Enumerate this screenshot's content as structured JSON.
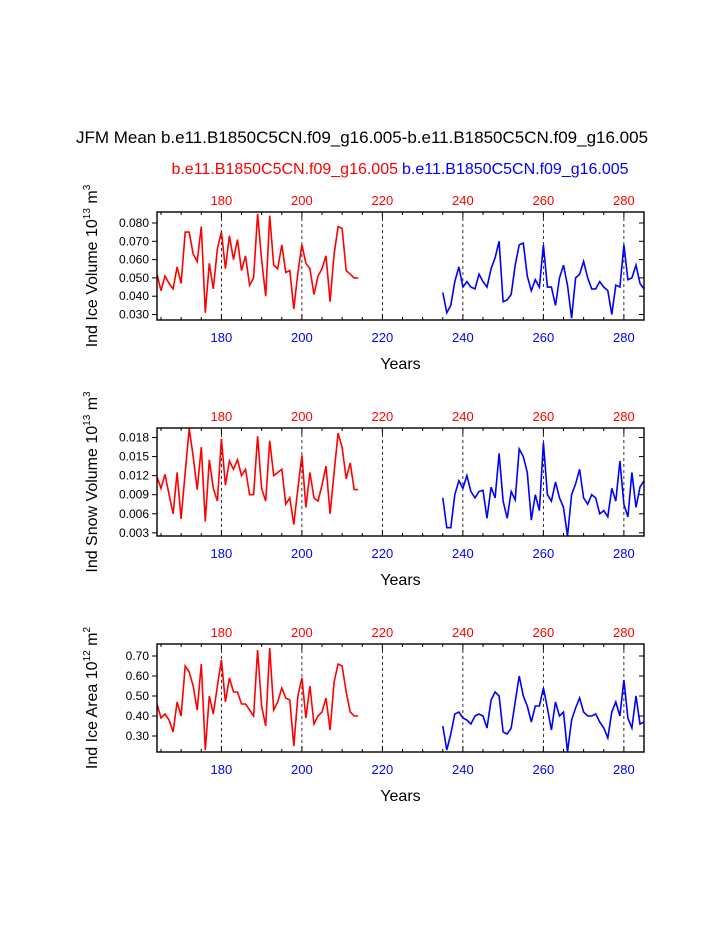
{
  "title": "JFM Mean b.e11.B1850C5CN.f09_g16.005-b.e11.B1850C5CN.f09_g16.005",
  "legend": [
    {
      "name": "b.e11.B1850C5CN.f09_g16.005",
      "color": "#ff0000"
    },
    {
      "name": "b.e11.B1850C5CN.f09_g16.005",
      "color": "#0000ff"
    }
  ],
  "colors": {
    "series_a": "#ff0000",
    "series_b": "#0000ff",
    "reference_line": "#000000"
  },
  "chart_data": [
    {
      "type": "line",
      "ylabel": "Ind Ice Volume 10",
      "ylabel_exp": "13",
      "ylabel_unit": " m",
      "ylabel_unit_exp": "3",
      "xlabel": "Years",
      "xlim": [
        164,
        285
      ],
      "ylim": [
        0.027,
        0.086
      ],
      "yticks": [
        "0.030",
        "0.040",
        "0.050",
        "0.060",
        "0.070",
        "0.080"
      ],
      "xticks": [
        "180",
        "200",
        "220",
        "240",
        "260",
        "280"
      ],
      "reference_lines": [
        180,
        200,
        220,
        240,
        260,
        280
      ],
      "grid": false,
      "series": [
        {
          "color": "#ff0000",
          "x": [
            164,
            165,
            166,
            167,
            168,
            169,
            170,
            171,
            172,
            173,
            174,
            175,
            176,
            177,
            178,
            179,
            180,
            181,
            182,
            183,
            184,
            185,
            186,
            187,
            188,
            189,
            190,
            191,
            192,
            193,
            194,
            195,
            196,
            197,
            198,
            199,
            200,
            201,
            202,
            203,
            204,
            205,
            206,
            207,
            208,
            209,
            210,
            211,
            212,
            213,
            214
          ],
          "values": [
            0.052,
            0.043,
            0.051,
            0.047,
            0.044,
            0.056,
            0.047,
            0.075,
            0.075,
            0.063,
            0.059,
            0.078,
            0.031,
            0.058,
            0.044,
            0.066,
            0.075,
            0.055,
            0.073,
            0.06,
            0.071,
            0.054,
            0.062,
            0.046,
            0.05,
            0.085,
            0.06,
            0.04,
            0.084,
            0.057,
            0.055,
            0.068,
            0.053,
            0.054,
            0.033,
            0.053,
            0.068,
            0.058,
            0.055,
            0.041,
            0.051,
            0.055,
            0.062,
            0.037,
            0.063,
            0.078,
            0.077,
            0.054,
            0.052,
            0.05,
            0.05
          ]
        },
        {
          "color": "#0000ff",
          "x": [
            235,
            236,
            237,
            238,
            239,
            240,
            241,
            242,
            243,
            244,
            245,
            246,
            247,
            248,
            249,
            250,
            251,
            252,
            253,
            254,
            255,
            256,
            257,
            258,
            259,
            260,
            261,
            262,
            263,
            264,
            265,
            266,
            267,
            268,
            269,
            270,
            271,
            272,
            273,
            274,
            275,
            276,
            277,
            278,
            279,
            280,
            281,
            282,
            283,
            284,
            285
          ],
          "values": [
            0.042,
            0.031,
            0.035,
            0.048,
            0.056,
            0.045,
            0.048,
            0.045,
            0.044,
            0.052,
            0.048,
            0.045,
            0.055,
            0.061,
            0.07,
            0.037,
            0.038,
            0.041,
            0.057,
            0.068,
            0.069,
            0.051,
            0.043,
            0.049,
            0.045,
            0.068,
            0.045,
            0.045,
            0.035,
            0.05,
            0.057,
            0.046,
            0.028,
            0.05,
            0.052,
            0.059,
            0.05,
            0.044,
            0.044,
            0.048,
            0.045,
            0.043,
            0.03,
            0.046,
            0.045,
            0.068,
            0.049,
            0.05,
            0.057,
            0.047,
            0.044
          ]
        }
      ]
    },
    {
      "type": "line",
      "ylabel": "Ind Snow Volume 10",
      "ylabel_exp": "13",
      "ylabel_unit": " m",
      "ylabel_unit_exp": "3",
      "xlabel": "Years",
      "xlim": [
        164,
        285
      ],
      "ylim": [
        0.0025,
        0.0195
      ],
      "yticks": [
        "0.003",
        "0.006",
        "0.009",
        "0.012",
        "0.015",
        "0.018"
      ],
      "xticks": [
        "180",
        "200",
        "220",
        "240",
        "260",
        "280"
      ],
      "reference_lines": [
        180,
        200,
        220,
        240,
        260,
        280
      ],
      "grid": false,
      "series": [
        {
          "color": "#ff0000",
          "x": [
            164,
            165,
            166,
            167,
            168,
            169,
            170,
            171,
            172,
            173,
            174,
            175,
            176,
            177,
            178,
            179,
            180,
            181,
            182,
            183,
            184,
            185,
            186,
            187,
            188,
            189,
            190,
            191,
            192,
            193,
            194,
            195,
            196,
            197,
            198,
            199,
            200,
            201,
            202,
            203,
            204,
            205,
            206,
            207,
            208,
            209,
            210,
            211,
            212,
            213,
            214
          ],
          "values": [
            0.0118,
            0.01,
            0.0122,
            0.009,
            0.006,
            0.0125,
            0.0052,
            0.0125,
            0.0194,
            0.015,
            0.0098,
            0.0165,
            0.0048,
            0.0145,
            0.01,
            0.008,
            0.0178,
            0.0105,
            0.0143,
            0.013,
            0.0145,
            0.012,
            0.013,
            0.009,
            0.009,
            0.0182,
            0.01,
            0.008,
            0.0175,
            0.012,
            0.0125,
            0.013,
            0.0075,
            0.0085,
            0.0043,
            0.01,
            0.0152,
            0.007,
            0.0125,
            0.0085,
            0.008,
            0.0105,
            0.0135,
            0.006,
            0.0125,
            0.0187,
            0.0165,
            0.0115,
            0.014,
            0.0098,
            0.0098
          ]
        },
        {
          "color": "#0000ff",
          "x": [
            235,
            236,
            237,
            238,
            239,
            240,
            241,
            242,
            243,
            244,
            245,
            246,
            247,
            248,
            249,
            250,
            251,
            252,
            253,
            254,
            255,
            256,
            257,
            258,
            259,
            260,
            261,
            262,
            263,
            264,
            265,
            266,
            267,
            268,
            269,
            270,
            271,
            272,
            273,
            274,
            275,
            276,
            277,
            278,
            279,
            280,
            281,
            282,
            283,
            284,
            285
          ],
          "values": [
            0.0085,
            0.0038,
            0.0038,
            0.009,
            0.0112,
            0.01,
            0.012,
            0.0095,
            0.0085,
            0.0095,
            0.0097,
            0.0053,
            0.0102,
            0.0085,
            0.0155,
            0.008,
            0.0053,
            0.0095,
            0.0082,
            0.0162,
            0.015,
            0.0125,
            0.005,
            0.009,
            0.0065,
            0.0172,
            0.009,
            0.008,
            0.011,
            0.0085,
            0.007,
            0.0025,
            0.009,
            0.0107,
            0.013,
            0.0085,
            0.0075,
            0.009,
            0.0085,
            0.006,
            0.0065,
            0.0055,
            0.01,
            0.008,
            0.0143,
            0.0075,
            0.0055,
            0.0125,
            0.007,
            0.0102,
            0.0112
          ]
        }
      ]
    },
    {
      "type": "line",
      "ylabel": "Ind Ice Area 10",
      "ylabel_exp": "12",
      "ylabel_unit": " m",
      "ylabel_unit_exp": "2",
      "xlabel": "Years",
      "xlim": [
        164,
        285
      ],
      "ylim": [
        0.22,
        0.76
      ],
      "yticks": [
        "0.30",
        "0.40",
        "0.50",
        "0.60",
        "0.70"
      ],
      "xticks": [
        "180",
        "200",
        "220",
        "240",
        "260",
        "280"
      ],
      "reference_lines": [
        180,
        200,
        220,
        240,
        260,
        280
      ],
      "grid": false,
      "series": [
        {
          "color": "#ff0000",
          "x": [
            164,
            165,
            166,
            167,
            168,
            169,
            170,
            171,
            172,
            173,
            174,
            175,
            176,
            177,
            178,
            179,
            180,
            181,
            182,
            183,
            184,
            185,
            186,
            187,
            188,
            189,
            190,
            191,
            192,
            193,
            194,
            195,
            196,
            197,
            198,
            199,
            200,
            201,
            202,
            203,
            204,
            205,
            206,
            207,
            208,
            209,
            210,
            211,
            212,
            213,
            214
          ],
          "values": [
            0.46,
            0.39,
            0.41,
            0.38,
            0.32,
            0.47,
            0.4,
            0.65,
            0.62,
            0.55,
            0.43,
            0.66,
            0.23,
            0.5,
            0.41,
            0.55,
            0.68,
            0.47,
            0.59,
            0.52,
            0.52,
            0.46,
            0.46,
            0.43,
            0.4,
            0.73,
            0.45,
            0.35,
            0.74,
            0.43,
            0.47,
            0.54,
            0.49,
            0.48,
            0.25,
            0.5,
            0.59,
            0.39,
            0.55,
            0.36,
            0.4,
            0.42,
            0.49,
            0.33,
            0.57,
            0.66,
            0.65,
            0.52,
            0.42,
            0.4,
            0.4
          ]
        },
        {
          "color": "#0000ff",
          "x": [
            235,
            236,
            237,
            238,
            239,
            240,
            241,
            242,
            243,
            244,
            245,
            246,
            247,
            248,
            249,
            250,
            251,
            252,
            253,
            254,
            255,
            256,
            257,
            258,
            259,
            260,
            261,
            262,
            263,
            264,
            265,
            266,
            267,
            268,
            269,
            270,
            271,
            272,
            273,
            274,
            275,
            276,
            277,
            278,
            279,
            280,
            281,
            282,
            283,
            284,
            285
          ],
          "values": [
            0.35,
            0.23,
            0.31,
            0.41,
            0.42,
            0.39,
            0.38,
            0.36,
            0.4,
            0.41,
            0.4,
            0.34,
            0.48,
            0.52,
            0.5,
            0.32,
            0.31,
            0.34,
            0.47,
            0.6,
            0.5,
            0.45,
            0.37,
            0.45,
            0.45,
            0.54,
            0.44,
            0.33,
            0.47,
            0.4,
            0.42,
            0.22,
            0.38,
            0.44,
            0.49,
            0.42,
            0.4,
            0.4,
            0.41,
            0.37,
            0.34,
            0.29,
            0.42,
            0.47,
            0.4,
            0.58,
            0.39,
            0.34,
            0.5,
            0.36,
            0.37
          ]
        }
      ]
    }
  ]
}
